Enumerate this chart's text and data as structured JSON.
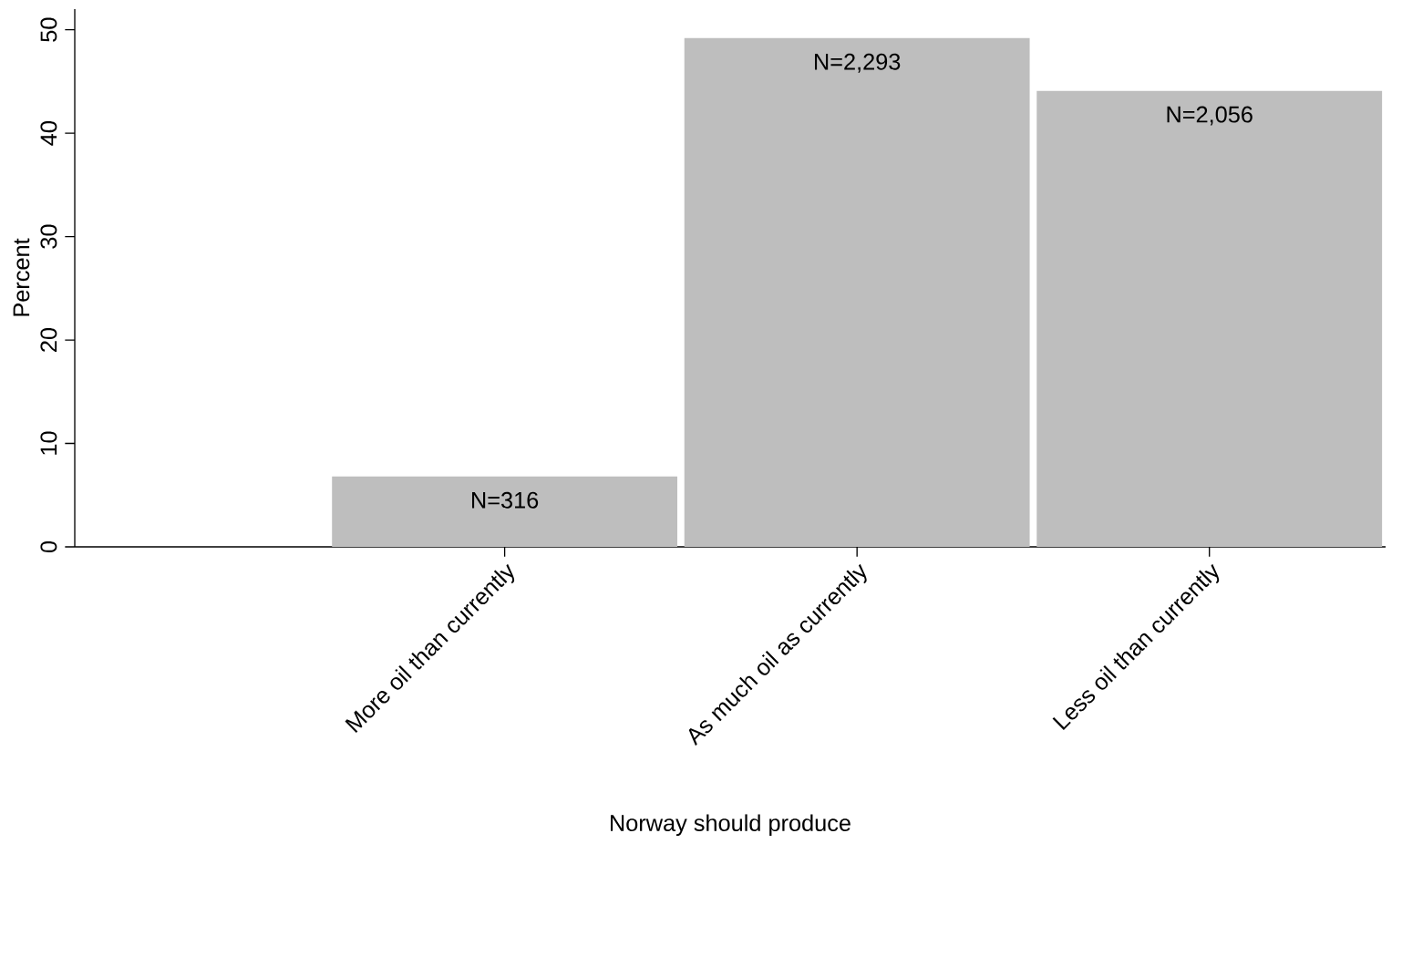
{
  "chart_data": {
    "type": "bar",
    "xlabel": "Norway should produce",
    "ylabel": "Percent",
    "categories": [
      "More oil than currently",
      "As much oil as currently",
      "Less oil than currently"
    ],
    "values": [
      6.8,
      49.2,
      44.1
    ],
    "annotations": [
      {
        "text": "N=316",
        "x": "More oil than currently",
        "y": 6.8
      },
      {
        "text": "N=2,293",
        "x": "As much oil as currently",
        "y": 49.2
      },
      {
        "text": "N=2,056",
        "x": "Less oil than currently",
        "y": 44.1
      }
    ],
    "color": "#bebebe",
    "ylim": [
      0,
      52
    ],
    "yticks": [
      0,
      10,
      20,
      30,
      40,
      50
    ],
    "grid": false
  }
}
